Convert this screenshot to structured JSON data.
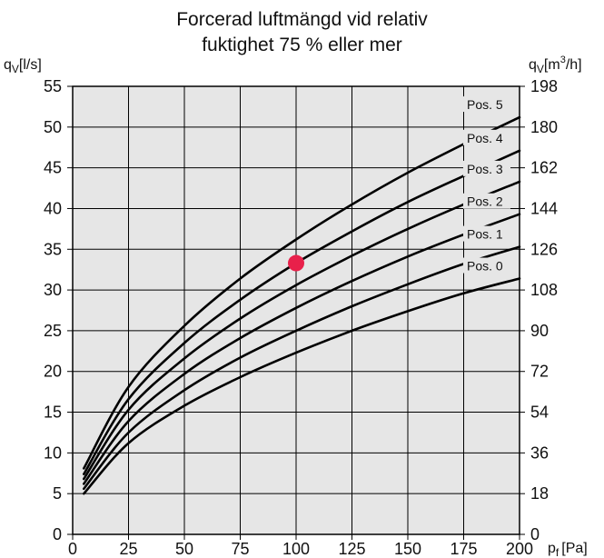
{
  "chart_data": {
    "type": "line",
    "title_line1": "Forcerad luftmängd vid relativ",
    "title_line2": "fuktighet 75 % eller mer",
    "ylabel_left": {
      "symbol": "q",
      "sub": "V",
      "unit": "[l/s]"
    },
    "ylabel_right": {
      "symbol": "q",
      "sub": "V",
      "unit_pre": "[m",
      "sup": "3",
      "unit_post": "/h]"
    },
    "xlabel": {
      "symbol": "p",
      "sub": "f",
      "unit": "[Pa]"
    },
    "xlim": [
      0,
      200
    ],
    "ylim": [
      0,
      55
    ],
    "x_ticks": [
      0,
      25,
      50,
      75,
      100,
      125,
      150,
      175,
      200
    ],
    "y_ticks_left": [
      0,
      5,
      10,
      15,
      20,
      25,
      30,
      35,
      40,
      45,
      50,
      55
    ],
    "y_ticks_right": [
      0,
      18,
      36,
      54,
      72,
      90,
      108,
      126,
      144,
      162,
      180,
      198
    ],
    "grid": true,
    "x": [
      5,
      25,
      50,
      75,
      100,
      125,
      150,
      175,
      200
    ],
    "series": [
      {
        "name": "Pos. 0",
        "values": [
          5.0,
          11.2,
          15.8,
          19.3,
          22.3,
          25.0,
          27.4,
          29.6,
          31.4
        ]
      },
      {
        "name": "Pos. 1",
        "values": [
          5.6,
          12.5,
          17.7,
          21.7,
          25.0,
          28.0,
          30.7,
          33.2,
          35.3
        ]
      },
      {
        "name": "Pos. 2",
        "values": [
          6.2,
          13.9,
          19.7,
          24.1,
          27.8,
          31.1,
          34.1,
          36.8,
          39.3
        ]
      },
      {
        "name": "Pos. 3",
        "values": [
          6.8,
          15.3,
          21.6,
          26.5,
          30.6,
          34.2,
          37.5,
          40.5,
          43.3
        ]
      },
      {
        "name": "Pos. 4",
        "values": [
          7.4,
          16.6,
          23.5,
          28.8,
          33.3,
          37.2,
          40.8,
          44.0,
          47.1
        ]
      },
      {
        "name": "Pos. 5",
        "values": [
          8.1,
          18.1,
          25.6,
          31.4,
          36.2,
          40.5,
          44.4,
          47.9,
          51.2
        ]
      }
    ],
    "marker": {
      "x": 100,
      "y": 33.3,
      "color": "#e8204a"
    },
    "colors": {
      "background": "#e6e6e6",
      "grid": "#000000",
      "curve": "#000000"
    }
  }
}
